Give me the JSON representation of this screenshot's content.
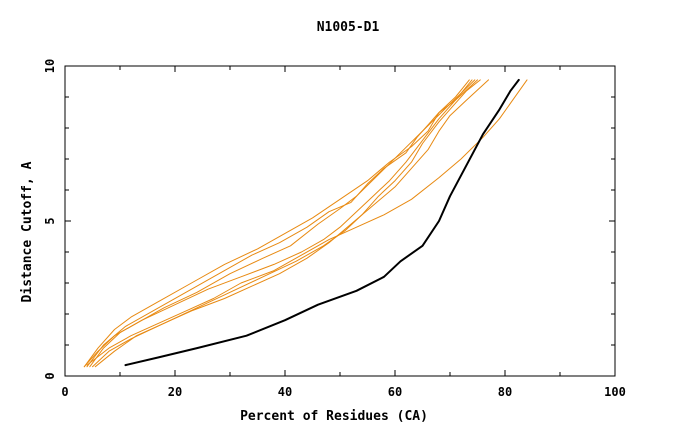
{
  "chart_data": {
    "type": "line",
    "title": "N1005-D1",
    "xlabel": "Percent of Residues (CA)",
    "ylabel": "Distance Cutoff, A",
    "xlim": [
      0,
      100
    ],
    "ylim": [
      0,
      10
    ],
    "xticks": [
      "0",
      "20",
      "40",
      "60",
      "80",
      "100"
    ],
    "yticks": [
      "0",
      "5",
      "10"
    ],
    "grid": false,
    "colors": {
      "highlight": "#000000",
      "others": "#e88a12",
      "axis": "#000000"
    },
    "series": [
      {
        "color": "#000000",
        "highlight": true,
        "points": [
          [
            11.0,
            0.35
          ],
          [
            17,
            0.6
          ],
          [
            24,
            0.9
          ],
          [
            33,
            1.3
          ],
          [
            40,
            1.8
          ],
          [
            46,
            2.3
          ],
          [
            53,
            2.75
          ],
          [
            58,
            3.2
          ],
          [
            61,
            3.7
          ],
          [
            65,
            4.2
          ],
          [
            68,
            5.0
          ],
          [
            70,
            5.8
          ],
          [
            73,
            6.8
          ],
          [
            76,
            7.8
          ],
          [
            79,
            8.6
          ],
          [
            81,
            9.2
          ],
          [
            82.5,
            9.55
          ]
        ]
      },
      {
        "color": "#e88a12",
        "points": [
          [
            4.5,
            0.3
          ],
          [
            7,
            0.9
          ],
          [
            10,
            1.4
          ],
          [
            14,
            1.8
          ],
          [
            20,
            2.3
          ],
          [
            26,
            2.8
          ],
          [
            32,
            3.2
          ],
          [
            38,
            3.6
          ],
          [
            43,
            4.0
          ],
          [
            47,
            4.4
          ],
          [
            50,
            4.8
          ],
          [
            53,
            5.3
          ],
          [
            56,
            5.8
          ],
          [
            59,
            6.3
          ],
          [
            62,
            6.9
          ],
          [
            65,
            7.6
          ],
          [
            68,
            8.3
          ],
          [
            71,
            8.9
          ],
          [
            74,
            9.55
          ]
        ]
      },
      {
        "color": "#e88a12",
        "points": [
          [
            5,
            0.3
          ],
          [
            8,
            0.8
          ],
          [
            12,
            1.2
          ],
          [
            18,
            1.7
          ],
          [
            24,
            2.2
          ],
          [
            30,
            2.7
          ],
          [
            36,
            3.2
          ],
          [
            42,
            3.7
          ],
          [
            47,
            4.2
          ],
          [
            51,
            4.7
          ],
          [
            54,
            5.2
          ],
          [
            57,
            5.8
          ],
          [
            60,
            6.3
          ],
          [
            63,
            6.9
          ],
          [
            65,
            7.5
          ],
          [
            68,
            8.2
          ],
          [
            71,
            8.8
          ],
          [
            73,
            9.2
          ],
          [
            75.5,
            9.55
          ]
        ]
      },
      {
        "color": "#e88a12",
        "points": [
          [
            3.5,
            0.3
          ],
          [
            6,
            0.8
          ],
          [
            9,
            1.3
          ],
          [
            13,
            1.7
          ],
          [
            18,
            2.2
          ],
          [
            24,
            2.7
          ],
          [
            30,
            3.3
          ],
          [
            36,
            3.8
          ],
          [
            41,
            4.2
          ],
          [
            46,
            4.9
          ],
          [
            50,
            5.4
          ],
          [
            53,
            5.8
          ],
          [
            57,
            6.5
          ],
          [
            61,
            7.2
          ],
          [
            65,
            7.9
          ],
          [
            69,
            8.6
          ],
          [
            74.5,
            9.55
          ]
        ]
      },
      {
        "color": "#e88a12",
        "points": [
          [
            4,
            0.3
          ],
          [
            7,
            1.0
          ],
          [
            11,
            1.6
          ],
          [
            17,
            2.2
          ],
          [
            23,
            2.8
          ],
          [
            29,
            3.4
          ],
          [
            34,
            3.9
          ],
          [
            39,
            4.3
          ],
          [
            44,
            4.8
          ],
          [
            48,
            5.3
          ],
          [
            52,
            5.6
          ],
          [
            55,
            6.2
          ],
          [
            58,
            6.7
          ],
          [
            62,
            7.2
          ],
          [
            64,
            7.7
          ],
          [
            66,
            8.1
          ],
          [
            68,
            8.5
          ],
          [
            71,
            8.9
          ],
          [
            75,
            9.55
          ]
        ]
      },
      {
        "color": "#e88a12",
        "points": [
          [
            4,
            0.35
          ],
          [
            8,
            0.9
          ],
          [
            12,
            1.3
          ],
          [
            17,
            1.7
          ],
          [
            22,
            2.1
          ],
          [
            27,
            2.5
          ],
          [
            32,
            3.0
          ],
          [
            38,
            3.4
          ],
          [
            43,
            3.9
          ],
          [
            48,
            4.4
          ],
          [
            53,
            4.8
          ],
          [
            58,
            5.2
          ],
          [
            63,
            5.7
          ],
          [
            68,
            6.4
          ],
          [
            72,
            7.0
          ],
          [
            76,
            7.7
          ],
          [
            79,
            8.3
          ],
          [
            81,
            8.8
          ],
          [
            84,
            9.55
          ]
        ]
      },
      {
        "color": "#e88a12",
        "points": [
          [
            5.5,
            0.3
          ],
          [
            9,
            0.8
          ],
          [
            13,
            1.3
          ],
          [
            18,
            1.7
          ],
          [
            23,
            2.1
          ],
          [
            29,
            2.5
          ],
          [
            34,
            2.9
          ],
          [
            39,
            3.3
          ],
          [
            44,
            3.8
          ],
          [
            48,
            4.3
          ],
          [
            52,
            4.9
          ],
          [
            56,
            5.5
          ],
          [
            60,
            6.1
          ],
          [
            63,
            6.7
          ],
          [
            66,
            7.3
          ],
          [
            68,
            7.9
          ],
          [
            70,
            8.4
          ],
          [
            73,
            8.9
          ],
          [
            77,
            9.55
          ]
        ]
      },
      {
        "color": "#e88a12",
        "points": [
          [
            3.5,
            0.3
          ],
          [
            6,
            0.9
          ],
          [
            9,
            1.5
          ],
          [
            12,
            1.9
          ],
          [
            17,
            2.4
          ],
          [
            23,
            3.0
          ],
          [
            29,
            3.6
          ],
          [
            35,
            4.1
          ],
          [
            40,
            4.6
          ],
          [
            45,
            5.1
          ],
          [
            50,
            5.7
          ],
          [
            55,
            6.3
          ],
          [
            59,
            6.9
          ],
          [
            63,
            7.4
          ],
          [
            66,
            7.9
          ],
          [
            68,
            8.5
          ],
          [
            71,
            9.0
          ],
          [
            73.5,
            9.55
          ]
        ]
      }
    ]
  }
}
